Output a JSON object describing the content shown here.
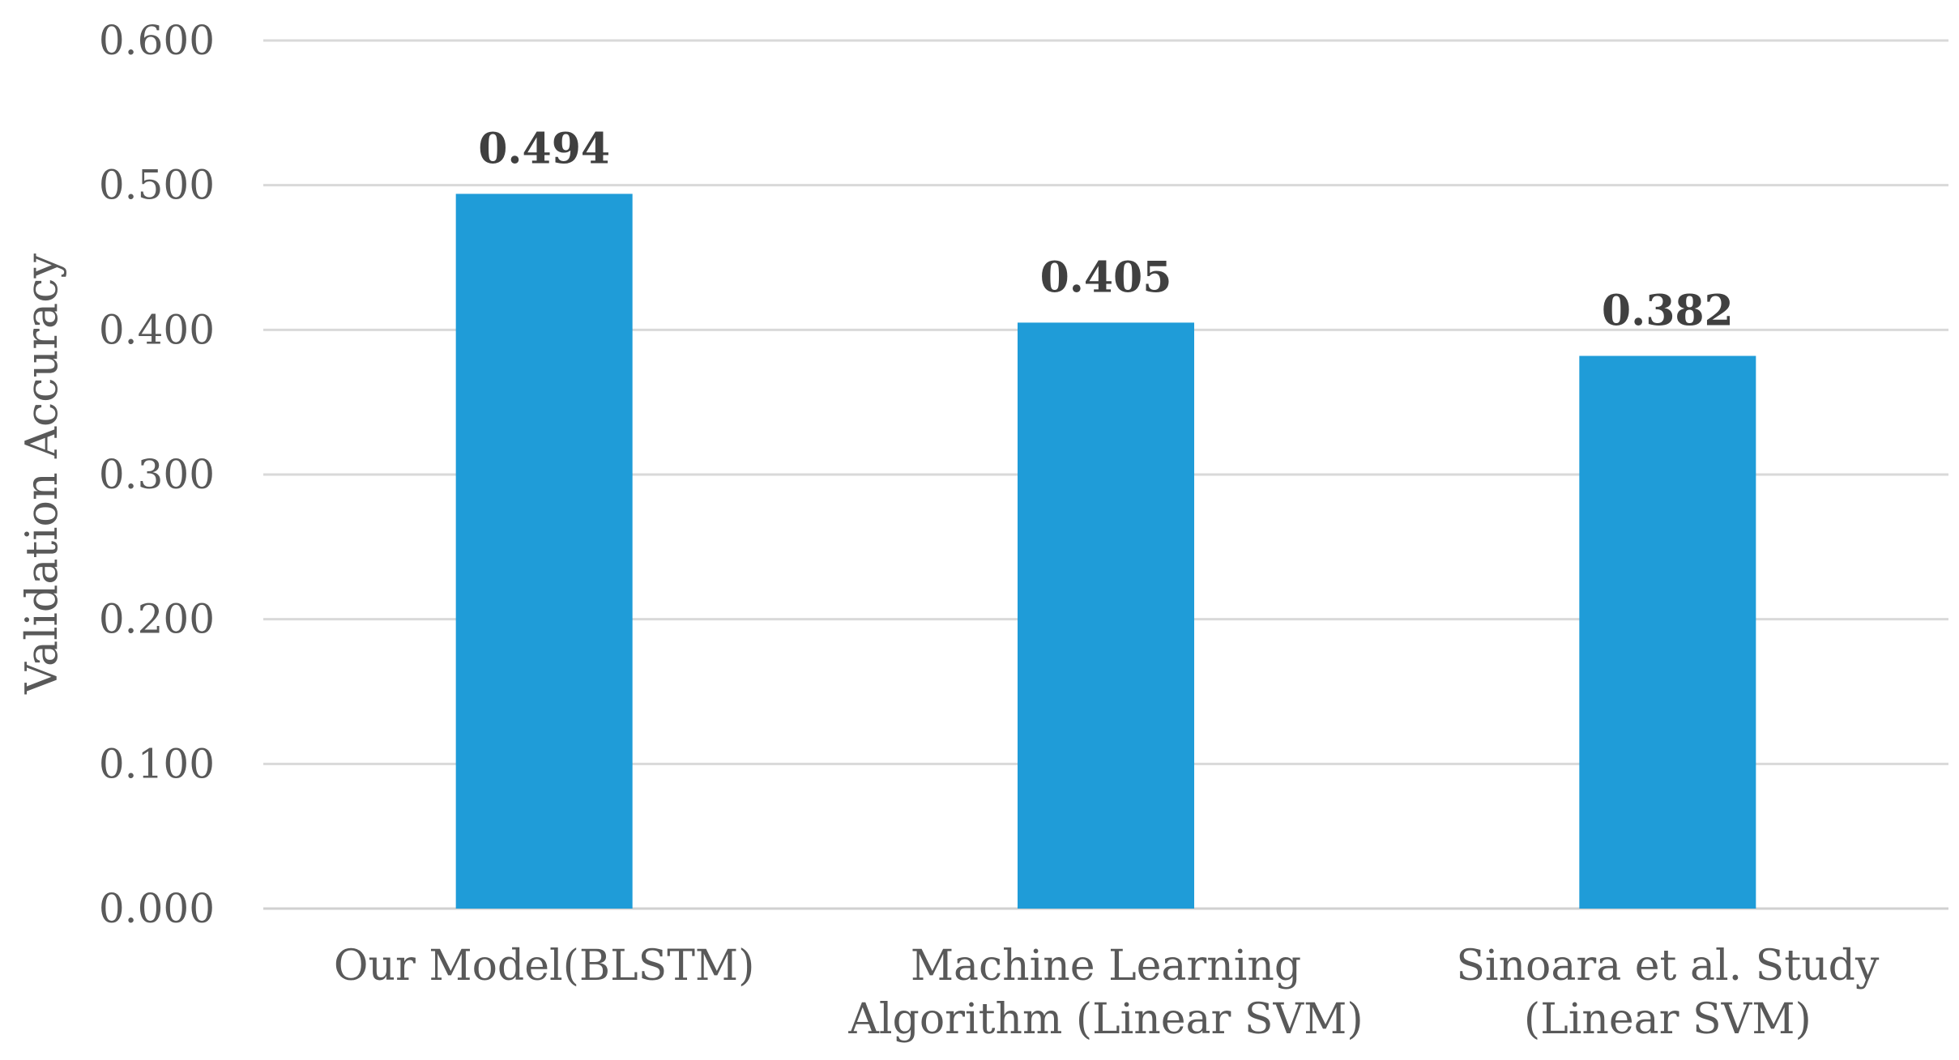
{
  "chart_data": {
    "type": "bar",
    "categories": [
      [
        "Our Model(BLSTM)"
      ],
      [
        "Machine Learning",
        "Algorithm (Linear SVM)"
      ],
      [
        "Sinoara et al.  Study",
        "(Linear SVM)"
      ]
    ],
    "values": [
      0.494,
      0.405,
      0.382
    ],
    "data_labels": [
      "0.494",
      "0.405",
      "0.382"
    ],
    "title": "",
    "xlabel": "",
    "ylabel": "Validation Accuracy",
    "ylim": [
      0,
      0.6
    ],
    "yticks": [
      0.0,
      0.1,
      0.2,
      0.3,
      0.4,
      0.5,
      0.6
    ],
    "ytick_labels": [
      "0.000",
      "0.100",
      "0.200",
      "0.300",
      "0.400",
      "0.500",
      "0.600"
    ],
    "grid": true,
    "legend": "none",
    "bar_color": "#1f9cd8"
  }
}
